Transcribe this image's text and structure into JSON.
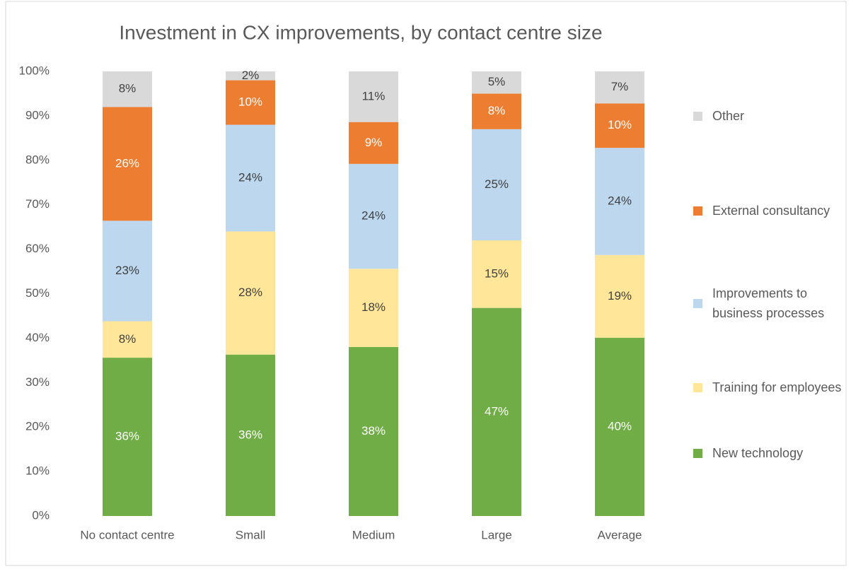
{
  "chart_data": {
    "type": "stacked_bar",
    "title": "Investment in CX improvements, by contact centre size",
    "categories": [
      "No contact centre",
      "Small",
      "Medium",
      "Large",
      "Average"
    ],
    "series": [
      {
        "name": "New technology",
        "color": "#70ad47",
        "label_color": "#ffffff",
        "values": [
          35.6,
          36.3,
          38,
          46.8,
          40.1
        ],
        "value_labels": [
          "36%",
          "36%",
          "38%",
          "47%",
          "40%"
        ]
      },
      {
        "name": "Training for employees",
        "color": "#ffe699",
        "label_color": "#404040",
        "values": [
          8.2,
          27.7,
          17.6,
          15.2,
          18.6
        ],
        "value_labels": [
          "8%",
          "28%",
          "18%",
          "15%",
          "19%"
        ]
      },
      {
        "name": "Improvements to business processes",
        "color": "#bdd7ee",
        "label_color": "#404040",
        "values": [
          22.6,
          24,
          23.6,
          25,
          24.1
        ],
        "value_labels": [
          "23%",
          "24%",
          "24%",
          "25%",
          "24%"
        ]
      },
      {
        "name": "External consultancy",
        "color": "#ed7d31",
        "label_color": "#ffffff",
        "values": [
          25.6,
          10,
          9.4,
          8,
          10
        ],
        "value_labels": [
          "26%",
          "10%",
          "9%",
          "8%",
          "10%"
        ]
      },
      {
        "name": "Other",
        "color": "#d9d9d9",
        "label_color": "#404040",
        "values": [
          8,
          2,
          11.4,
          5,
          7.2
        ],
        "value_labels": [
          "8%",
          "2%",
          "11%",
          "5%",
          "7%"
        ]
      }
    ],
    "ylim": [
      0,
      100
    ],
    "yticks": [
      {
        "value": 0,
        "label": "0%"
      },
      {
        "value": 10,
        "label": "10%"
      },
      {
        "value": 20,
        "label": "20%"
      },
      {
        "value": 30,
        "label": "30%"
      },
      {
        "value": 40,
        "label": "40%"
      },
      {
        "value": 50,
        "label": "50%"
      },
      {
        "value": 60,
        "label": "60%"
      },
      {
        "value": 70,
        "label": "70%"
      },
      {
        "value": 80,
        "label": "80%"
      },
      {
        "value": 90,
        "label": "90%"
      },
      {
        "value": 100,
        "label": "100%"
      }
    ],
    "grid": false,
    "legend": "right"
  }
}
